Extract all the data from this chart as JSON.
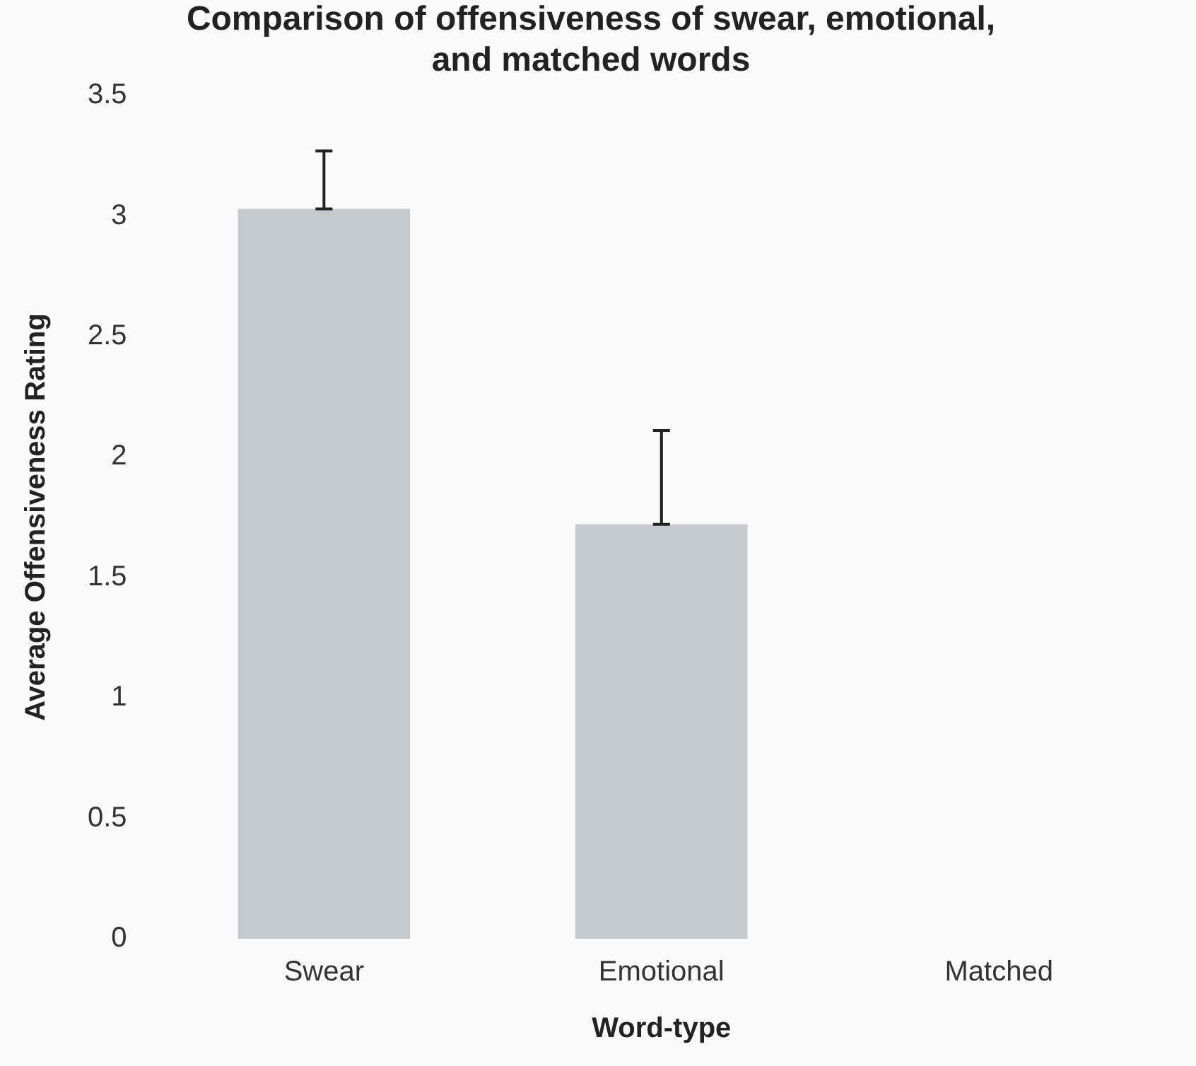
{
  "chart_data": {
    "type": "bar",
    "title": "Comparison of offensiveness of swear, emotional, and matched words",
    "xlabel": "Word-type",
    "ylabel": "Average Offensiveness Rating",
    "categories": [
      "Swear",
      "Emotional",
      "Matched"
    ],
    "values": [
      3.03,
      1.72,
      0
    ],
    "color": "#c5cad1",
    "errors": [
      [
        3.03,
        3.27
      ],
      [
        1.72,
        2.11
      ],
      null
    ],
    "ylim": [
      0,
      3.5
    ],
    "yticks": [
      0,
      0.5,
      1,
      1.5,
      2,
      2.5,
      3,
      3.5
    ],
    "grid": false,
    "legend": false
  }
}
